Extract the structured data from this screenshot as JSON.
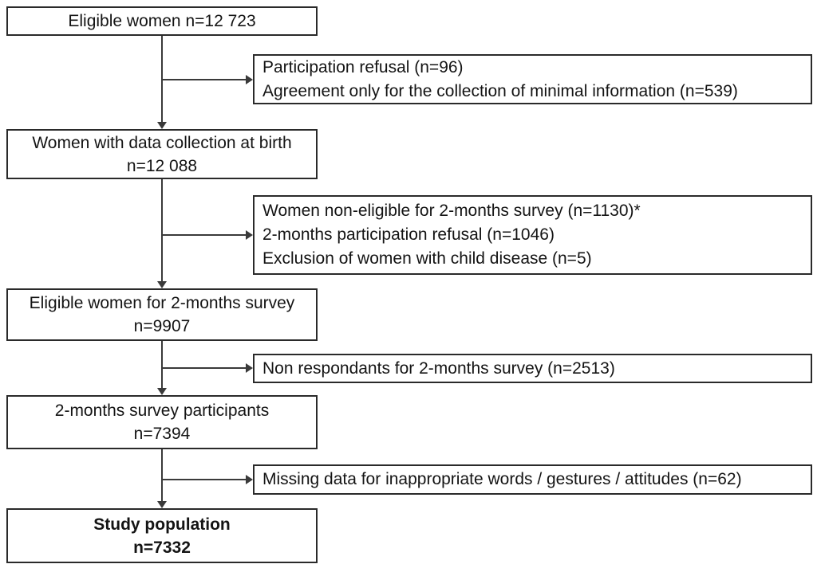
{
  "diagram": {
    "type": "study-flowchart",
    "background_color": "#ffffff",
    "box_border_color": "#2a2a2a",
    "arrow_color": "#3a3a3a",
    "text_color": "#141414",
    "main_boxes": [
      {
        "id": "eligible-women",
        "lines": [
          "Eligible women n=12 723"
        ],
        "bold": false
      },
      {
        "id": "women-data-collection-birth",
        "lines": [
          "Women with data collection at birth",
          "n=12 088"
        ],
        "bold": false
      },
      {
        "id": "eligible-women-2-months",
        "lines": [
          "Eligible women for 2-months survey",
          "n=9907"
        ],
        "bold": false
      },
      {
        "id": "2-months-participants",
        "lines": [
          "2-months survey participants",
          "n=7394"
        ],
        "bold": false
      },
      {
        "id": "study-population",
        "lines": [
          "Study population",
          "n=7332"
        ],
        "bold": true
      }
    ],
    "exclusion_boxes": [
      {
        "id": "exclusion-1",
        "lines": [
          "Participation refusal (n=96)",
          "Agreement only for the collection of minimal information (n=539)"
        ]
      },
      {
        "id": "exclusion-2",
        "lines": [
          "Women non-eligible for 2-months survey (n=1130)*",
          "2-months participation refusal (n=1046)",
          "Exclusion of women with child disease (n=5)"
        ]
      },
      {
        "id": "exclusion-3",
        "lines": [
          "Non respondants for 2-months survey (n=2513)"
        ]
      },
      {
        "id": "exclusion-4",
        "lines": [
          "Missing data for inappropriate words / gestures / attitudes (n=62)"
        ]
      }
    ]
  }
}
